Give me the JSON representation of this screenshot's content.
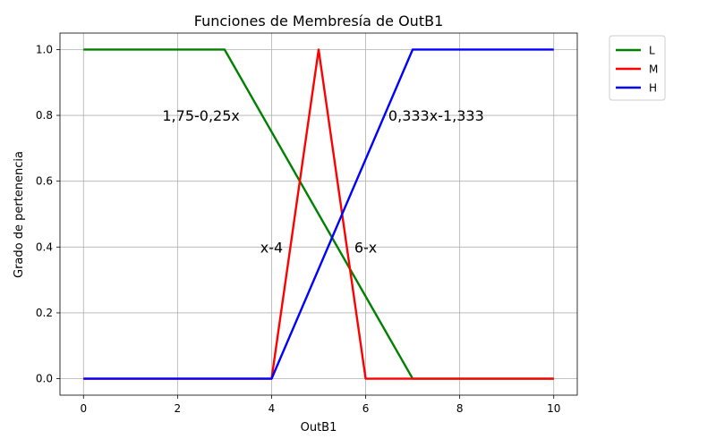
{
  "chart_data": {
    "type": "line",
    "title": "Funciones de Membresía de OutB1",
    "xlabel": "OutB1",
    "ylabel": "Grado de pertenencia",
    "xlim": [
      -0.5,
      10.5
    ],
    "ylim": [
      -0.05,
      1.05
    ],
    "xticks": [
      0,
      2,
      4,
      6,
      8,
      10
    ],
    "yticks": [
      0.0,
      0.2,
      0.4,
      0.6,
      0.8,
      1.0
    ],
    "xtick_labels": [
      "0",
      "2",
      "4",
      "6",
      "8",
      "10"
    ],
    "ytick_labels": [
      "0.0",
      "0.2",
      "0.4",
      "0.6",
      "0.8",
      "1.0"
    ],
    "grid": true,
    "legend_position": "outside-top-right",
    "series": [
      {
        "name": "L",
        "color": "#008000",
        "x": [
          0,
          3,
          7,
          10
        ],
        "y": [
          1,
          1,
          0,
          0
        ]
      },
      {
        "name": "M",
        "color": "#ff0000",
        "x": [
          0,
          4,
          5,
          6,
          10
        ],
        "y": [
          0,
          0,
          1,
          0,
          0
        ]
      },
      {
        "name": "H",
        "color": "#0000ff",
        "x": [
          0,
          4,
          7,
          10
        ],
        "y": [
          0,
          0,
          1,
          1
        ]
      }
    ],
    "annotations": [
      {
        "text": "1,75-0,25x",
        "x": 2.5,
        "y": 0.8
      },
      {
        "text": "0,333x-1,333",
        "x": 7.5,
        "y": 0.8
      },
      {
        "text": "x-4",
        "x": 4,
        "y": 0.4
      },
      {
        "text": "6-x",
        "x": 6,
        "y": 0.4
      }
    ]
  }
}
